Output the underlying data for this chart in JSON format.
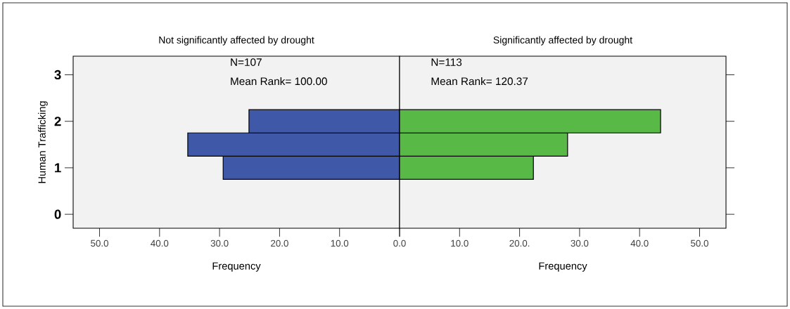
{
  "chart_data": [
    {
      "type": "histogram",
      "orientation": "horizontal",
      "title": "Not significantly affected by drought",
      "xlabel": "Frequency",
      "ylabel": "Human Trafficking",
      "bins": [
        0.75,
        1.25,
        1.75,
        2.25
      ],
      "values": [
        29.4,
        35.3,
        25.1
      ],
      "color": "#3f58a8",
      "xlim": [
        54.4,
        0
      ],
      "xticks": [
        {
          "value": 50,
          "label": "50.0"
        },
        {
          "value": 40,
          "label": "40.0"
        },
        {
          "value": 30,
          "label": "30.0"
        },
        {
          "value": 20,
          "label": "20.0"
        },
        {
          "value": 10,
          "label": "10.0"
        },
        {
          "value": 0,
          "label": null
        }
      ],
      "ylim": [
        -0.3,
        3.4
      ],
      "yticks": [
        0,
        1,
        2,
        3
      ],
      "annotations": [
        "N=107",
        "Mean Rank= 100.00"
      ]
    },
    {
      "type": "histogram",
      "orientation": "horizontal",
      "title": "Significantly affected by drought",
      "xlabel": "Frequency",
      "bins": [
        0.75,
        1.25,
        1.75,
        2.25
      ],
      "values": [
        22.3,
        28.0,
        43.5
      ],
      "color": "#58b947",
      "xlim": [
        0,
        54.4
      ],
      "xticks": [
        {
          "value": 0,
          "label": "0.0"
        },
        {
          "value": 10,
          "label": "10.0"
        },
        {
          "value": 20,
          "label": "20.0."
        },
        {
          "value": 30,
          "label": "30.0"
        },
        {
          "value": 40,
          "label": "40.0"
        },
        {
          "value": 50,
          "label": "50.0"
        }
      ],
      "ylim": [
        -0.3,
        3.4
      ],
      "yticks": [
        0,
        1,
        2,
        3
      ],
      "tick_labels": "x",
      "annotations": [
        "N=113",
        "Mean Rank= 120.37"
      ]
    }
  ]
}
